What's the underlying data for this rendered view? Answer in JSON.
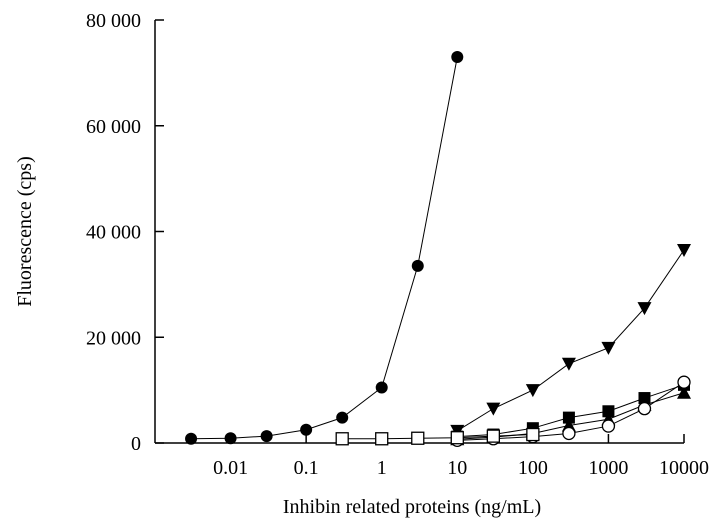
{
  "chart_data": {
    "type": "line",
    "xlabel": "Inhibin related proteins (ng/mL)",
    "ylabel": "Fluorescence (cps)",
    "xscale": "log",
    "xlim": [
      0.001,
      10000
    ],
    "ylim": [
      0,
      80000
    ],
    "xticks": [
      0.01,
      0.1,
      1,
      10,
      100,
      1000,
      10000
    ],
    "xtick_labels": [
      "0.01",
      "0.1",
      "1",
      "10",
      "100",
      "1000",
      "10000"
    ],
    "yticks": [
      0,
      20000,
      40000,
      60000,
      80000
    ],
    "ytick_labels": [
      "0",
      "20 000",
      "40 000",
      "60 000",
      "80 000"
    ],
    "grid": false,
    "series": [
      {
        "marker": "filled-circle",
        "x": [
          0.003,
          0.01,
          0.03,
          0.1,
          0.3,
          1,
          3,
          10
        ],
        "y": [
          800,
          900,
          1300,
          2500,
          4800,
          10500,
          33500,
          73000
        ]
      },
      {
        "marker": "filled-triangle-down",
        "x": [
          10,
          30,
          100,
          300,
          1000,
          3000,
          10000
        ],
        "y": [
          2300,
          6500,
          10000,
          15000,
          18000,
          25500,
          36500
        ]
      },
      {
        "marker": "filled-square",
        "x": [
          10,
          30,
          100,
          300,
          1000,
          3000,
          10000
        ],
        "y": [
          1200,
          1600,
          2800,
          4800,
          6000,
          8500,
          11000
        ]
      },
      {
        "marker": "filled-triangle-up",
        "x": [
          10,
          30,
          100,
          300,
          1000,
          3000,
          10000
        ],
        "y": [
          700,
          1100,
          1800,
          3300,
          4500,
          7200,
          9500
        ]
      },
      {
        "marker": "open-circle",
        "x": [
          10,
          30,
          100,
          300,
          1000,
          3000,
          10000
        ],
        "y": [
          500,
          800,
          1200,
          1800,
          3200,
          6500,
          11500
        ]
      },
      {
        "marker": "open-square",
        "x": [
          0.3,
          1,
          3,
          10,
          30,
          100
        ],
        "y": [
          800,
          800,
          900,
          1000,
          1300,
          1600
        ]
      }
    ]
  }
}
